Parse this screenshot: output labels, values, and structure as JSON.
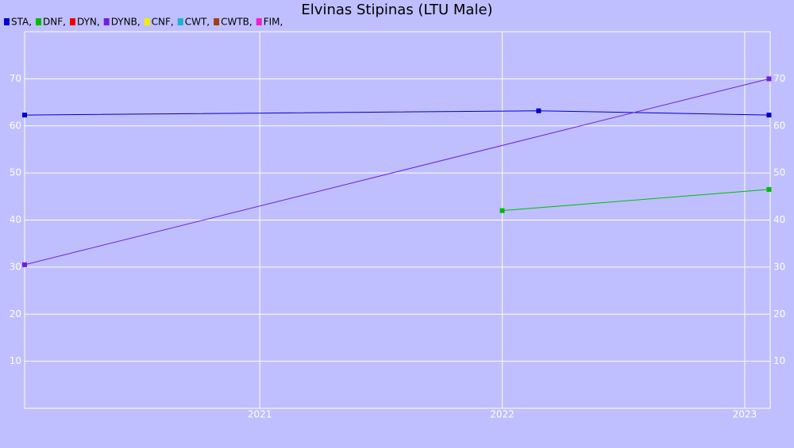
{
  "chart_data": {
    "type": "line",
    "title": "Elvinas Stipinas (LTU Male)",
    "xlim": [
      2020.03,
      2023.105
    ],
    "xticks": [
      2021,
      2022,
      2023
    ],
    "ylim": [
      0,
      80
    ],
    "yticks": [
      10,
      20,
      30,
      40,
      50,
      60,
      70
    ],
    "grid": true,
    "series": [
      {
        "name": "STA,",
        "color": "#0000cc",
        "x": [
          2020.03,
          2022.15,
          2023.1
        ],
        "values": [
          62.3,
          63.2,
          62.3
        ]
      },
      {
        "name": "DNF,",
        "color": "#00bb00",
        "x": [
          2022.0,
          2023.1
        ],
        "values": [
          42,
          46.5
        ]
      },
      {
        "name": "DYN,",
        "color": "#ee0000",
        "x": [],
        "values": []
      },
      {
        "name": "DYNB,",
        "color": "#7020dd",
        "x": [
          2020.03,
          2023.1
        ],
        "values": [
          30.5,
          70
        ]
      },
      {
        "name": "CNF,",
        "color": "#eeee00",
        "x": [],
        "values": []
      },
      {
        "name": "CWT,",
        "color": "#20b0d0",
        "x": [],
        "values": []
      },
      {
        "name": "CWTB,",
        "color": "#a04010",
        "x": [],
        "values": []
      },
      {
        "name": "FIM,",
        "color": "#ee20cc",
        "x": [],
        "values": []
      }
    ]
  }
}
